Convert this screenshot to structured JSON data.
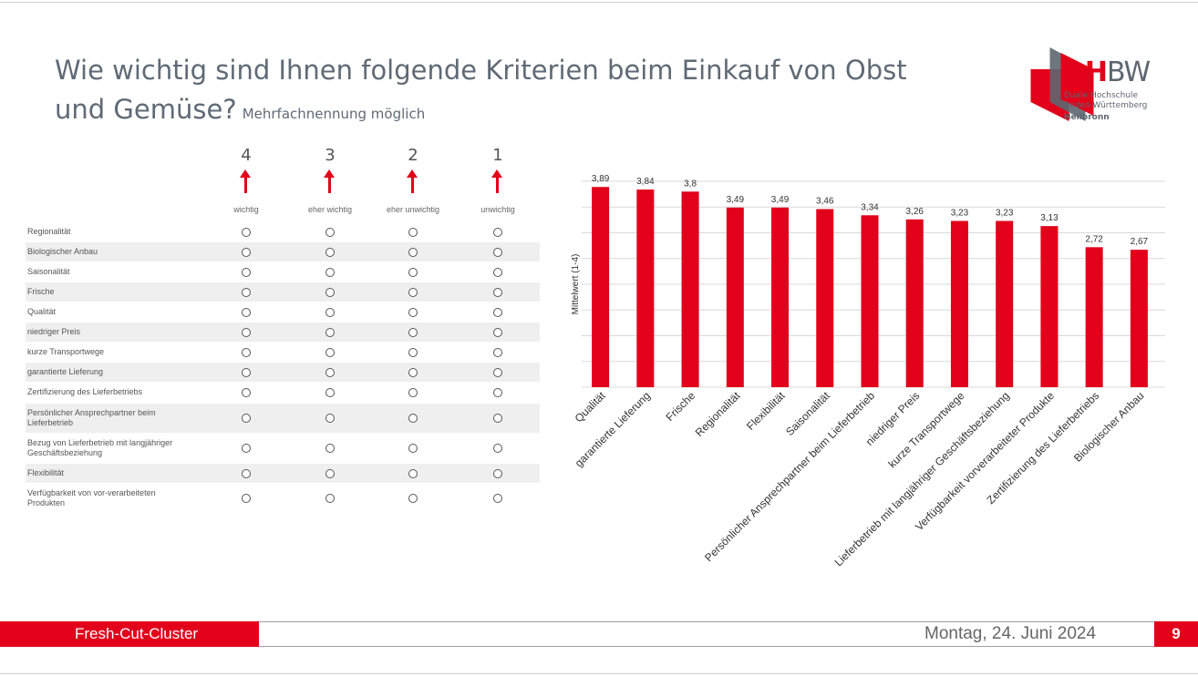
{
  "slide": {
    "title": "Wie wichtig sind Ihnen folgende Kriterien beim Einkauf von Obst und Gemüse?",
    "subtitle": "Mehrfachnennung möglich"
  },
  "logo": {
    "brand_red": "DH",
    "brand_grey": "BW",
    "line1": "Duale Hochschule",
    "line2": "Baden-Württemberg",
    "city": "Heilbronn",
    "accent_color": "#e2001a"
  },
  "survey": {
    "scale": [
      {
        "number": "4",
        "label": "wichtig"
      },
      {
        "number": "3",
        "label": "eher wichtig"
      },
      {
        "number": "2",
        "label": "eher unwichtig"
      },
      {
        "number": "1",
        "label": "unwichtig"
      }
    ],
    "items": [
      {
        "label": "Regionalität"
      },
      {
        "label": "Biologischer Anbau"
      },
      {
        "label": "Saisonalität"
      },
      {
        "label": "Frische"
      },
      {
        "label": "Qualität"
      },
      {
        "label": "niedriger Preis"
      },
      {
        "label": "kurze Transportwege"
      },
      {
        "label": "garantierte Lieferung"
      },
      {
        "label": "Zertifizierung des Lieferbetriebs"
      },
      {
        "label": "Persönlicher Ansprechpartner beim Lieferbetrieb"
      },
      {
        "label": "Bezug von Lieferbetrieb mit langjähriger Geschäftsbeziehung"
      },
      {
        "label": "Flexibilität"
      },
      {
        "label": "Verfügbarkeit von vor-verarbeiteten Produkten"
      }
    ]
  },
  "chart_data": {
    "type": "bar",
    "ylabel": "Mittelwert (1-4)",
    "ylim": [
      0,
      4
    ],
    "grid": true,
    "bar_color": "#e2001a",
    "categories": [
      "Qualität",
      "garantierte Lieferung",
      "Frische",
      "Regionalität",
      "Flexibilität",
      "Saisonalität",
      "Persönlicher Ansprechpartner beim Lieferbetrieb",
      "niedriger Preis",
      "kurze Transportwege",
      "Lieferbetrieb mit langjähriger Geschäftsbeziehung",
      "Verfügbarkeit vorverarbeiteter Produkte",
      "Zertifizierung des Lieferbetriebs",
      "Biologischer Anbau"
    ],
    "values": [
      3.89,
      3.84,
      3.8,
      3.49,
      3.49,
      3.46,
      3.34,
      3.26,
      3.23,
      3.23,
      3.13,
      2.72,
      2.67
    ],
    "value_labels": [
      "3,89",
      "3,84",
      "3,8",
      "3,49",
      "3,49",
      "3,46",
      "3,34",
      "3,26",
      "3,23",
      "3,23",
      "3,13",
      "2,72",
      "2,67"
    ]
  },
  "footer": {
    "left": "Fresh-Cut-Cluster",
    "date": "Montag, 24. Juni 2024",
    "page": "9"
  }
}
